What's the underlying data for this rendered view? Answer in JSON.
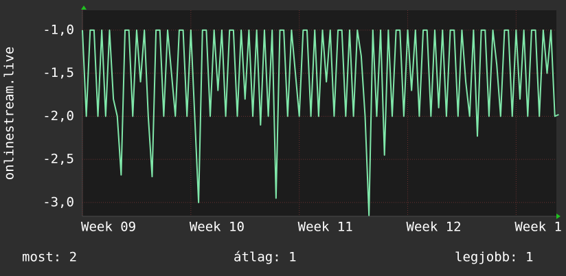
{
  "chart_data": {
    "type": "line",
    "y_label": "onlinestream.live",
    "xlim": [
      0,
      30.6
    ],
    "ylim": [
      -3.16,
      -0.77
    ],
    "xticks": [
      {
        "value": 0,
        "label": "Week 09"
      },
      {
        "value": 7,
        "label": "Week 10"
      },
      {
        "value": 14,
        "label": "Week 11"
      },
      {
        "value": 21,
        "label": "Week 12"
      },
      {
        "value": 28,
        "label": "Week 1"
      }
    ],
    "yticks": [
      {
        "value": -1,
        "label": "-1,0"
      },
      {
        "value": -1.5,
        "label": "-1,5"
      },
      {
        "value": -2,
        "label": "-2,0"
      },
      {
        "value": -2.5,
        "label": "-2,5"
      },
      {
        "value": -3,
        "label": "-3,0"
      }
    ],
    "grid": true,
    "x": [
      0,
      0.25,
      0.5,
      0.75,
      1,
      1.25,
      1.5,
      1.75,
      2,
      2.25,
      2.5,
      2.75,
      3,
      3.25,
      3.5,
      3.75,
      4,
      4.25,
      4.5,
      4.75,
      5,
      5.25,
      5.5,
      5.75,
      6,
      6.25,
      6.5,
      6.75,
      7,
      7.25,
      7.5,
      7.75,
      8,
      8.25,
      8.5,
      8.75,
      9,
      9.25,
      9.5,
      9.75,
      10,
      10.25,
      10.5,
      10.75,
      11,
      11.25,
      11.5,
      11.75,
      12,
      12.25,
      12.5,
      12.75,
      13,
      13.25,
      13.5,
      13.75,
      14,
      14.25,
      14.5,
      14.75,
      15,
      15.25,
      15.5,
      15.75,
      16,
      16.25,
      16.5,
      16.75,
      17,
      17.25,
      17.5,
      17.75,
      18,
      18.25,
      18.5,
      18.75,
      19,
      19.25,
      19.5,
      19.75,
      20,
      20.25,
      20.5,
      20.75,
      21,
      21.25,
      21.5,
      21.75,
      22,
      22.25,
      22.5,
      22.75,
      23,
      23.25,
      23.5,
      23.75,
      24,
      24.25,
      24.5,
      24.75,
      25,
      25.25,
      25.5,
      25.75,
      26,
      26.25,
      26.5,
      26.75,
      27,
      27.25,
      27.5,
      27.75,
      28,
      28.25,
      28.5,
      28.75,
      29,
      29.25,
      29.5,
      29.75,
      30,
      30.25,
      30.5,
      30.75
    ],
    "series": [
      {
        "name": "onlinestream.live",
        "color": "#80e8aa",
        "values": [
          -1,
          -2,
          -1,
          -1,
          -2,
          -1,
          -2,
          -1,
          -1.8,
          -2,
          -2.68,
          -1,
          -1,
          -2,
          -1,
          -1.6,
          -1,
          -2,
          -2.7,
          -1,
          -1,
          -2,
          -1,
          -1.5,
          -2,
          -1,
          -1,
          -2,
          -1,
          -2,
          -3.0,
          -1,
          -1,
          -2,
          -1,
          -1.7,
          -1,
          -2,
          -1,
          -1,
          -2,
          -1,
          -1.8,
          -1,
          -2,
          -1,
          -2.1,
          -1,
          -2,
          -1,
          -2.95,
          -1,
          -1,
          -2,
          -1,
          -1.5,
          -2,
          -1,
          -1,
          -2,
          -1,
          -2,
          -1,
          -1.6,
          -1,
          -2,
          -1,
          -1,
          -2,
          -1,
          -2,
          -1,
          -1.3,
          -2,
          -3.15,
          -1,
          -2,
          -1,
          -2.45,
          -1,
          -2,
          -1,
          -1,
          -2,
          -1,
          -1.7,
          -1,
          -2,
          -1,
          -1,
          -2,
          -1,
          -1.9,
          -1,
          -2,
          -1,
          -1,
          -2,
          -1,
          -1.6,
          -2,
          -1,
          -2.23,
          -1,
          -1,
          -2,
          -1,
          -1.4,
          -2,
          -1,
          -1,
          -2,
          -1,
          -1.8,
          -1,
          -2,
          -1,
          -1,
          -2,
          -1,
          -1.5,
          -1,
          -2,
          -1.98
        ]
      }
    ],
    "footer": [
      "most: 2",
      "átlag: 1",
      "legjobb: 1"
    ]
  }
}
